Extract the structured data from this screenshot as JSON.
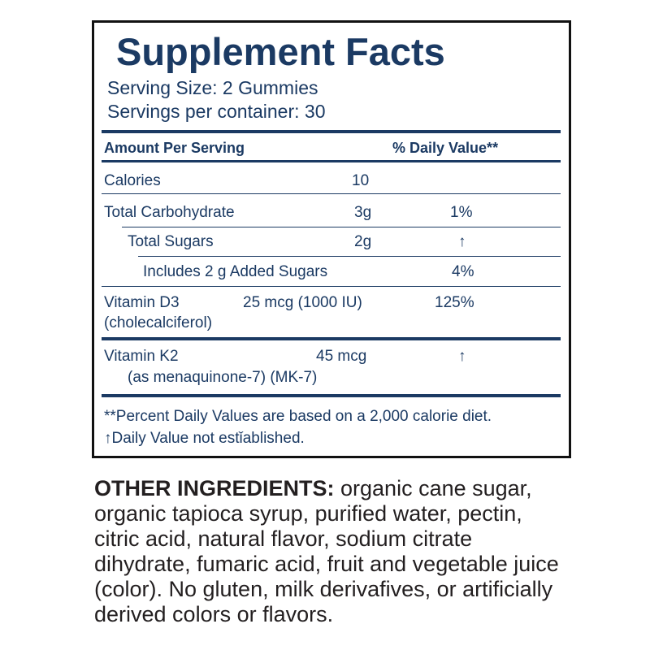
{
  "label": {
    "title": "Supplement Facts",
    "serving_size": "Serving Size: 2 Gummies",
    "servings_per_container": "Servings per container: 30",
    "header_amount": "Amount Per Serving",
    "header_dv": "% Daily Value**",
    "rows": [
      {
        "name": "Calories",
        "amount": "10",
        "dv": ""
      },
      {
        "name": "Total Carbohydrate",
        "amount": "3g",
        "dv": "1%"
      },
      {
        "name": "Total Sugars",
        "amount": "2g",
        "dv": "↑"
      },
      {
        "name": "Includes 2 g Added Sugars",
        "amount": "",
        "dv": "4%"
      },
      {
        "name": "Vitamin D3",
        "sub": "(cholecalciferol)",
        "amount": "25 mcg (1000 IU)",
        "dv": "125%"
      },
      {
        "name": "Vitamin K2",
        "sub": "(as menaquinone-7) (MK-7)",
        "amount": "45 mcg",
        "dv": "↑"
      }
    ],
    "footnote1": "**Percent Daily Values are based on a 2,000 calorie diet.",
    "footnote2": "↑Daily Value not estǐablished."
  },
  "ingredients": {
    "heading": "OTHER INGREDIENTS:",
    "text": " organic cane sugar, organic tapioca syrup, purified water, pectin, citric acid, natural flavor, sodium citrate dihydrate, fumaric acid, fruit and vegetable juice (color). No gluten, milk derivafives, or artificially derived colors or flavors."
  }
}
